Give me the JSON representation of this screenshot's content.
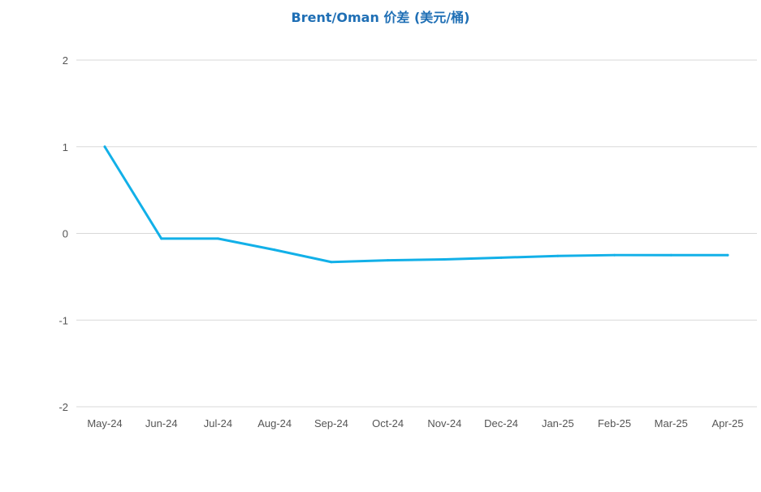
{
  "chart_data": {
    "type": "line",
    "title": "Brent/Oman 价差 (美元/桶)",
    "xlabel": "",
    "ylabel": "",
    "categories": [
      "May-24",
      "Jun-24",
      "Jul-24",
      "Aug-24",
      "Sep-24",
      "Oct-24",
      "Nov-24",
      "Dec-24",
      "Jan-25",
      "Feb-25",
      "Mar-25",
      "Apr-25"
    ],
    "series": [
      {
        "name": "",
        "values": [
          1.0,
          -0.06,
          -0.06,
          -0.19,
          -0.33,
          -0.31,
          -0.3,
          -0.28,
          -0.26,
          -0.25,
          -0.25,
          -0.25
        ],
        "color": "#12b0e8"
      }
    ],
    "ylim": [
      -2,
      2
    ],
    "yticks": [
      "2",
      "1",
      "0",
      "-1",
      "-2"
    ],
    "grid": true,
    "legend": "none",
    "gridColor": "#d9d9d9"
  }
}
